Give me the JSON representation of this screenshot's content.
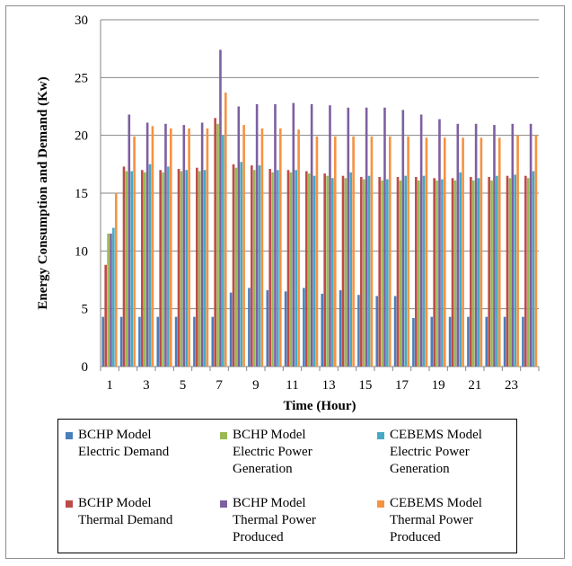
{
  "chart_data": {
    "type": "bar",
    "xlabel": "Time (Hour)",
    "ylabel": "Energy Consumption and Demand (Kw)",
    "ylim": [
      0,
      30
    ],
    "yticks": [
      0,
      5,
      10,
      15,
      20,
      25,
      30
    ],
    "categories": [
      1,
      2,
      3,
      4,
      5,
      6,
      7,
      8,
      9,
      10,
      11,
      12,
      13,
      14,
      15,
      16,
      17,
      18,
      19,
      20,
      21,
      22,
      23,
      24
    ],
    "xtick_labels": [
      "1",
      "3",
      "5",
      "7",
      "9",
      "11",
      "13",
      "15",
      "17",
      "19",
      "21",
      "23"
    ],
    "grid": "horizontal",
    "legend_position": "bottom",
    "series": [
      {
        "name": "BCHP Model\nElectric Demand",
        "color": "#4a7ebb",
        "values": [
          4.3,
          4.3,
          4.3,
          4.3,
          4.3,
          4.3,
          4.3,
          6.4,
          6.8,
          6.6,
          6.5,
          6.8,
          6.3,
          6.6,
          6.2,
          6.1,
          6.1,
          4.2,
          4.3,
          4.3,
          4.3,
          4.3,
          4.3,
          4.3
        ]
      },
      {
        "name": "BCHP Model\nThermal Demand",
        "color": "#be4b48",
        "values": [
          8.8,
          17.3,
          17.0,
          17.0,
          17.1,
          17.2,
          21.5,
          17.5,
          17.4,
          17.1,
          17.0,
          16.9,
          16.7,
          16.5,
          16.4,
          16.4,
          16.4,
          16.4,
          16.3,
          16.3,
          16.4,
          16.4,
          16.5,
          16.5
        ]
      },
      {
        "name": "BCHP Model\nElectric Power\nGeneration",
        "color": "#98b954",
        "values": [
          11.5,
          16.9,
          16.8,
          16.8,
          16.9,
          16.9,
          21.0,
          17.2,
          17.0,
          16.8,
          16.8,
          16.7,
          16.5,
          16.3,
          16.2,
          16.1,
          16.1,
          16.1,
          16.1,
          16.1,
          16.1,
          16.1,
          16.3,
          16.3
        ]
      },
      {
        "name": "BCHP Model\nThermal Power\nProduced",
        "color": "#7d60a0",
        "values": [
          11.5,
          21.8,
          21.1,
          21.0,
          20.9,
          21.1,
          27.4,
          22.5,
          22.7,
          22.7,
          22.8,
          22.7,
          22.6,
          22.4,
          22.4,
          22.4,
          22.2,
          21.8,
          21.4,
          21.0,
          21.0,
          20.9,
          21.0,
          21.0
        ]
      },
      {
        "name": "CEBEMS Model\nElectric Power\nGeneration",
        "color": "#46aac5",
        "values": [
          12.0,
          16.9,
          17.5,
          17.3,
          17.0,
          17.0,
          20.0,
          17.7,
          17.4,
          17.0,
          17.0,
          16.5,
          16.3,
          16.8,
          16.5,
          16.2,
          16.5,
          16.5,
          16.2,
          16.8,
          16.3,
          16.5,
          16.6,
          16.9
        ]
      },
      {
        "name": "CEBEMS Model\nThermal Power\nProduced",
        "color": "#f69240",
        "values": [
          15.0,
          19.9,
          20.8,
          20.6,
          20.6,
          20.6,
          23.7,
          20.9,
          20.6,
          20.6,
          20.5,
          19.9,
          19.9,
          19.9,
          19.9,
          19.9,
          19.9,
          19.8,
          19.8,
          19.8,
          19.8,
          19.8,
          20.0,
          20.0
        ]
      }
    ],
    "legend_order": [
      0,
      2,
      4,
      1,
      3,
      5
    ]
  }
}
